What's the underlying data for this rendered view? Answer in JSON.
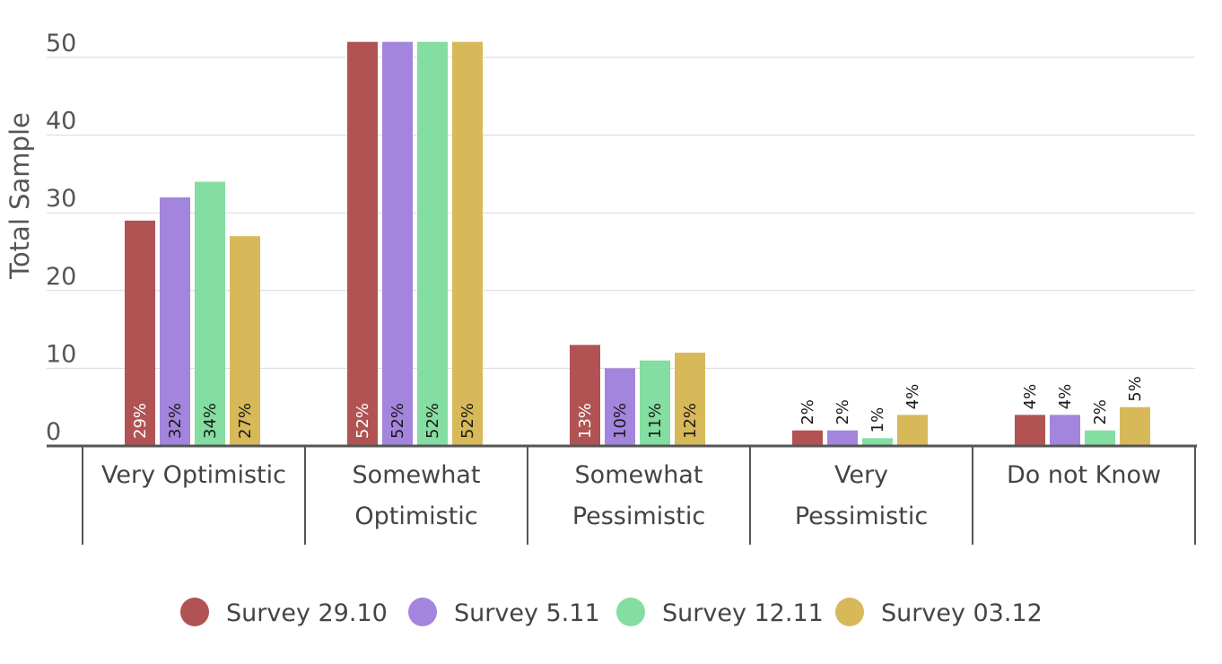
{
  "chart_data": {
    "type": "bar",
    "title": "",
    "ylabel": "Total  Sample",
    "xlabel": "",
    "ylim": [
      0,
      50
    ],
    "yticks": [
      0,
      10,
      20,
      30,
      40,
      50
    ],
    "grid": true,
    "legend_position": "bottom",
    "categories": [
      "Very Optimistic",
      "Somewhat Optimistic",
      "Somewhat Pessimistic",
      "Very Pessimistic",
      "Do not Know"
    ],
    "category_lines": [
      [
        "Very Optimistic"
      ],
      [
        "Somewhat",
        "Optimistic"
      ],
      [
        "Somewhat",
        "Pessimistic"
      ],
      [
        "Very",
        "Pessimistic"
      ],
      [
        "Do not Know"
      ]
    ],
    "series": [
      {
        "name": "Survey 29.10",
        "color": "#b05352",
        "values": [
          29,
          52,
          13,
          2,
          4
        ],
        "labels": [
          "29%",
          "52%",
          "13%",
          "2%",
          "4%"
        ]
      },
      {
        "name": "Survey 5.11",
        "color": "#a385dd",
        "values": [
          32,
          52,
          10,
          2,
          4
        ],
        "labels": [
          "32%",
          "52%",
          "10%",
          "2%",
          "4%"
        ]
      },
      {
        "name": "Survey 12.11",
        "color": "#84dea1",
        "values": [
          34,
          52,
          11,
          1,
          2
        ],
        "labels": [
          "34%",
          "52%",
          "11%",
          "1%",
          "2%"
        ]
      },
      {
        "name": "Survey 03.12",
        "color": "#d8b95a",
        "values": [
          27,
          52,
          12,
          4,
          5
        ],
        "labels": [
          "27%",
          "52%",
          "12%",
          "4%",
          "5%"
        ]
      }
    ]
  }
}
